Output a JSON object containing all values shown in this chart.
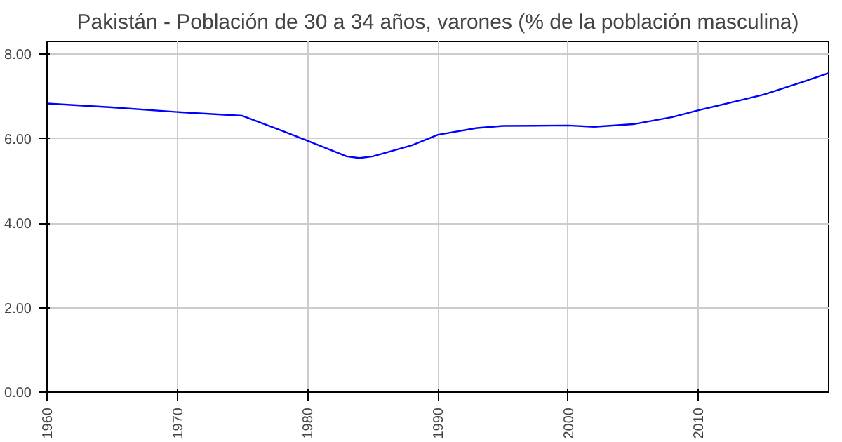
{
  "chart_data": {
    "type": "line",
    "title": "Pakistán - Población de 30 a 34 años, varones (% de la población masculina)",
    "x": [
      1960,
      1965,
      1970,
      1975,
      1978,
      1980,
      1983,
      1984,
      1985,
      1988,
      1990,
      1993,
      1995,
      2000,
      2002,
      2005,
      2008,
      2010,
      2013,
      2015,
      2018,
      2020
    ],
    "series": [
      {
        "color": "#0000ff",
        "values": [
          6.83,
          6.74,
          6.63,
          6.54,
          6.19,
          5.95,
          5.58,
          5.54,
          5.58,
          5.84,
          6.09,
          6.25,
          6.3,
          6.31,
          6.28,
          6.34,
          6.51,
          6.67,
          6.89,
          7.04,
          7.34,
          7.55
        ]
      }
    ],
    "xlim": [
      1960,
      2020
    ],
    "xticks": [
      1960,
      1970,
      1980,
      1990,
      2000,
      2010
    ],
    "ylim": [
      0,
      8.3
    ],
    "yticks": [
      {
        "value": 0,
        "label": "0.00"
      },
      {
        "value": 2,
        "label": "2.00"
      },
      {
        "value": 4,
        "label": "4.00"
      },
      {
        "value": 6,
        "label": "6.00"
      },
      {
        "value": 8,
        "label": "8.00"
      }
    ],
    "grid": true,
    "line_style": "solid"
  }
}
